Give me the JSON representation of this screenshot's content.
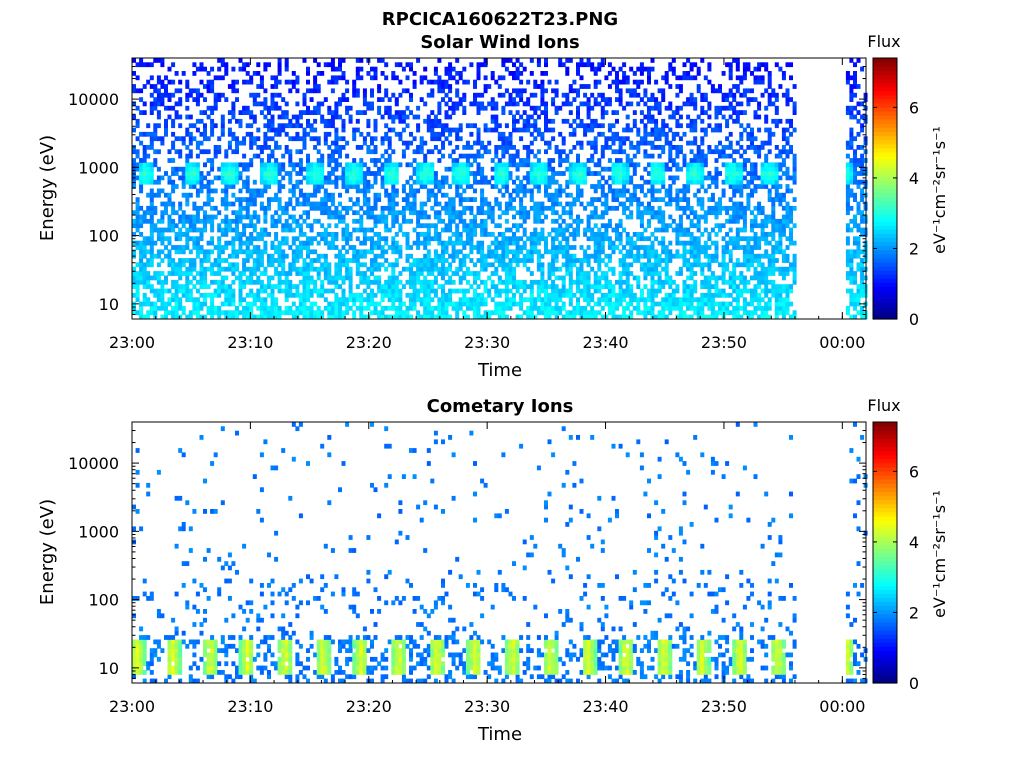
{
  "figure": {
    "filename": "RPCICA160622T23.PNG",
    "colormap": "jet",
    "colors": {
      "background": "#ffffff",
      "axis": "#000000"
    }
  },
  "chart_data": [
    {
      "type": "heatmap",
      "title": "Solar Wind Ions",
      "xlabel": "Time",
      "ylabel": "Energy (eV)",
      "x_ticks": [
        "23:00",
        "23:10",
        "23:20",
        "23:30",
        "23:40",
        "23:50",
        "00:00"
      ],
      "x_tick_minutes": [
        0,
        10,
        20,
        30,
        40,
        50,
        60
      ],
      "x_range_minutes": [
        0,
        62
      ],
      "y_scale": "log",
      "y_ticks": [
        "10",
        "100",
        "1000",
        "10000"
      ],
      "y_tick_values": [
        10,
        100,
        1000,
        10000
      ],
      "ylim": [
        6,
        40000
      ],
      "data_gap_minutes": [
        56,
        60
      ],
      "colorbar": {
        "label": "eV⁻¹cm⁻²sr⁻¹s⁻¹",
        "title": "Flux",
        "range": [
          0,
          7.4
        ],
        "ticks": [
          0,
          2,
          4,
          6
        ]
      },
      "features": {
        "peak_energy_eV": 800,
        "peak_flux": 3.2,
        "peak_times_minutes": [
          1.0,
          4.9,
          8.1,
          11.5,
          15.4,
          18.6,
          21.8,
          24.7,
          27.7,
          31.1,
          34.3,
          37.6,
          41.0,
          44.2,
          47.4,
          50.6,
          53.6,
          60.1
        ],
        "background_flux_low_energy": 2.7,
        "background_flux_high_energy": 1.0
      }
    },
    {
      "type": "heatmap",
      "title": "Cometary Ions",
      "xlabel": "Time",
      "ylabel": "Energy (eV)",
      "x_ticks": [
        "23:00",
        "23:10",
        "23:20",
        "23:30",
        "23:40",
        "23:50",
        "00:00"
      ],
      "x_tick_minutes": [
        0,
        10,
        20,
        30,
        40,
        50,
        60
      ],
      "x_range_minutes": [
        0,
        62
      ],
      "y_scale": "log",
      "y_ticks": [
        "10",
        "100",
        "1000",
        "10000"
      ],
      "y_tick_values": [
        10,
        100,
        1000,
        10000
      ],
      "ylim": [
        6,
        40000
      ],
      "data_gap_minutes": [
        56,
        60
      ],
      "colorbar": {
        "label": "eV⁻¹cm⁻²sr⁻¹s⁻¹",
        "title": "Flux",
        "range": [
          0,
          7.4
        ],
        "ticks": [
          0,
          2,
          4,
          6
        ]
      },
      "features": {
        "peak_energy_range_eV": [
          8,
          25
        ],
        "peak_flux": 4.4,
        "peak_times_minutes": [
          0.3,
          3.3,
          6.5,
          9.6,
          12.8,
          16.0,
          19.2,
          22.4,
          25.6,
          28.8,
          32.0,
          35.2,
          38.4,
          41.6,
          44.8,
          48.0,
          51.2,
          54.4,
          60.2
        ],
        "background_flux": 1.8
      }
    }
  ]
}
